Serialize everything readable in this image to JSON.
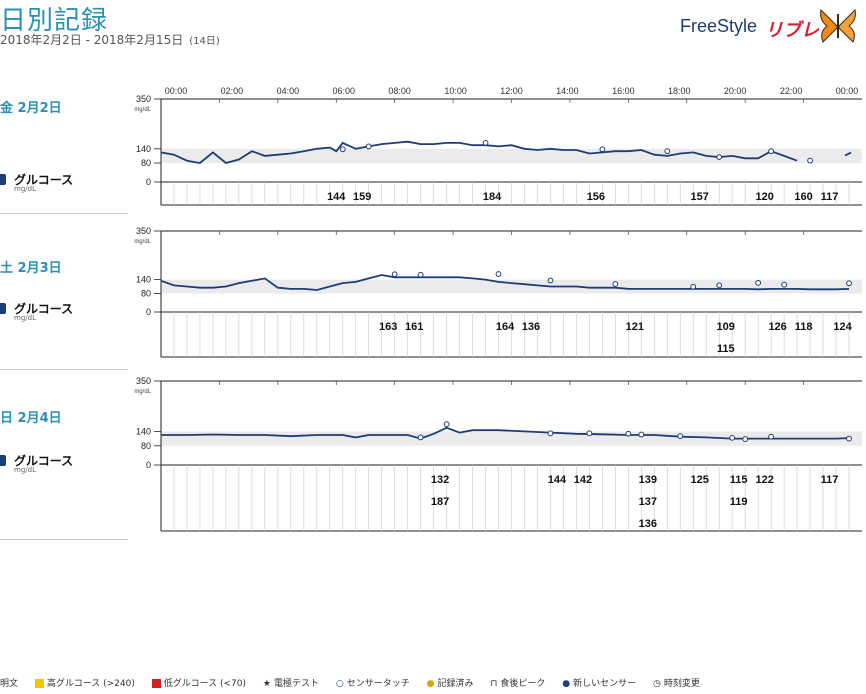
{
  "header": {
    "title": "日別記録",
    "date_range": "2018年2月2日  -  2018年2月15日",
    "days_count": "(14日)",
    "logo_text": "FreeStyle",
    "logo_jp": "リブレ"
  },
  "time_labels": [
    "00:00",
    "02:00",
    "04:00",
    "06:00",
    "08:00",
    "10:00",
    "12:00",
    "14:00",
    "16:00",
    "18:00",
    "20:00",
    "22:00",
    "00:00"
  ],
  "y_ticks": [
    "350",
    "140",
    "80",
    "0"
  ],
  "y_unit": "mg/dL",
  "glucose_label": "グルコース",
  "glucose_unit": "mg/dL",
  "days": [
    {
      "label": "金  2月2日",
      "trace": [
        [
          0,
          125
        ],
        [
          1,
          115
        ],
        [
          2,
          90
        ],
        [
          3,
          80
        ],
        [
          4,
          125
        ],
        [
          5,
          80
        ],
        [
          6,
          95
        ],
        [
          7,
          130
        ],
        [
          8,
          110
        ],
        [
          9,
          115
        ],
        [
          10,
          120
        ],
        [
          11,
          130
        ],
        [
          12,
          140
        ],
        [
          13,
          145
        ],
        [
          13.5,
          130
        ],
        [
          14,
          165
        ],
        [
          15,
          140
        ],
        [
          16,
          150
        ],
        [
          17,
          160
        ],
        [
          18,
          165
        ],
        [
          19,
          170
        ],
        [
          20,
          160
        ],
        [
          21,
          160
        ],
        [
          22,
          165
        ],
        [
          23,
          165
        ],
        [
          24,
          155
        ],
        [
          25,
          155
        ],
        [
          26,
          150
        ],
        [
          27,
          155
        ],
        [
          28,
          140
        ],
        [
          29,
          135
        ],
        [
          30,
          140
        ],
        [
          31,
          135
        ],
        [
          32,
          135
        ],
        [
          33,
          120
        ],
        [
          34,
          125
        ],
        [
          35,
          130
        ],
        [
          36,
          130
        ],
        [
          37,
          135
        ],
        [
          38,
          115
        ],
        [
          39,
          110
        ],
        [
          40,
          120
        ],
        [
          41,
          125
        ],
        [
          42,
          110
        ],
        [
          43,
          105
        ],
        [
          44,
          110
        ],
        [
          45,
          100
        ],
        [
          46,
          100
        ],
        [
          47,
          130
        ],
        [
          48,
          110
        ],
        [
          49,
          90
        ]
      ],
      "trace_end": [
        [
          53,
          120
        ]
      ],
      "touches": [
        [
          14,
          138
        ],
        [
          16,
          150
        ],
        [
          25,
          165
        ],
        [
          34,
          138
        ],
        [
          39,
          130
        ],
        [
          43,
          105
        ],
        [
          47,
          130
        ],
        [
          50,
          90
        ]
      ],
      "readings": [
        {
          "col": 13,
          "row": 0,
          "value": "144"
        },
        {
          "col": 15,
          "row": 0,
          "value": "159"
        },
        {
          "col": 25,
          "row": 0,
          "value": "184"
        },
        {
          "col": 33,
          "row": 0,
          "value": "156"
        },
        {
          "col": 41,
          "row": 0,
          "value": "157"
        },
        {
          "col": 46,
          "row": 0,
          "value": "120"
        },
        {
          "col": 49,
          "row": 0,
          "value": "160"
        },
        {
          "col": 51,
          "row": 0,
          "value": "117"
        }
      ]
    },
    {
      "label": "土  2月3日",
      "trace": [
        [
          0,
          135
        ],
        [
          1,
          115
        ],
        [
          2,
          110
        ],
        [
          3,
          105
        ],
        [
          4,
          105
        ],
        [
          5,
          110
        ],
        [
          6,
          125
        ],
        [
          7,
          135
        ],
        [
          8,
          145
        ],
        [
          9,
          105
        ],
        [
          10,
          100
        ],
        [
          11,
          100
        ],
        [
          12,
          95
        ],
        [
          13,
          110
        ],
        [
          14,
          125
        ],
        [
          15,
          130
        ],
        [
          16,
          145
        ],
        [
          17,
          160
        ],
        [
          18,
          150
        ],
        [
          19,
          150
        ],
        [
          20,
          150
        ],
        [
          21,
          150
        ],
        [
          22,
          150
        ],
        [
          23,
          150
        ],
        [
          24,
          145
        ],
        [
          25,
          140
        ],
        [
          26,
          130
        ],
        [
          27,
          125
        ],
        [
          28,
          120
        ],
        [
          29,
          115
        ],
        [
          30,
          110
        ],
        [
          31,
          110
        ],
        [
          32,
          110
        ],
        [
          33,
          105
        ],
        [
          34,
          105
        ],
        [
          35,
          105
        ],
        [
          36,
          100
        ],
        [
          37,
          100
        ],
        [
          38,
          100
        ],
        [
          39,
          100
        ],
        [
          40,
          100
        ],
        [
          41,
          100
        ],
        [
          42,
          100
        ],
        [
          43,
          100
        ],
        [
          44,
          100
        ],
        [
          45,
          100
        ],
        [
          46,
          98
        ],
        [
          47,
          100
        ],
        [
          48,
          100
        ],
        [
          49,
          100
        ],
        [
          50,
          98
        ],
        [
          51,
          98
        ],
        [
          52,
          98
        ],
        [
          53,
          100
        ]
      ],
      "trace_end": [],
      "touches": [
        [
          18,
          163
        ],
        [
          20,
          161
        ],
        [
          26,
          164
        ],
        [
          30,
          136
        ],
        [
          35,
          121
        ],
        [
          41,
          109
        ],
        [
          43,
          115
        ],
        [
          46,
          126
        ],
        [
          48,
          118
        ],
        [
          53,
          124
        ]
      ],
      "readings": [
        {
          "col": 17,
          "row": 0,
          "value": "163"
        },
        {
          "col": 19,
          "row": 0,
          "value": "161"
        },
        {
          "col": 26,
          "row": 0,
          "value": "164"
        },
        {
          "col": 28,
          "row": 0,
          "value": "136"
        },
        {
          "col": 36,
          "row": 0,
          "value": "121"
        },
        {
          "col": 43,
          "row": 0,
          "value": "109"
        },
        {
          "col": 43,
          "row": 1,
          "value": "115"
        },
        {
          "col": 47,
          "row": 0,
          "value": "126"
        },
        {
          "col": 49,
          "row": 0,
          "value": "118"
        },
        {
          "col": 52,
          "row": 0,
          "value": "124"
        }
      ]
    },
    {
      "label": "日  2月4日",
      "trace": [
        [
          0,
          125
        ],
        [
          2,
          125
        ],
        [
          4,
          127
        ],
        [
          6,
          125
        ],
        [
          8,
          125
        ],
        [
          10,
          120
        ],
        [
          12,
          125
        ],
        [
          14,
          125
        ],
        [
          15,
          115
        ],
        [
          16,
          125
        ],
        [
          18,
          125
        ],
        [
          19,
          125
        ],
        [
          20,
          110
        ],
        [
          21,
          130
        ],
        [
          22,
          155
        ],
        [
          23,
          135
        ],
        [
          24,
          145
        ],
        [
          26,
          145
        ],
        [
          28,
          140
        ],
        [
          30,
          135
        ],
        [
          32,
          130
        ],
        [
          34,
          128
        ],
        [
          36,
          125
        ],
        [
          38,
          125
        ],
        [
          40,
          118
        ],
        [
          42,
          115
        ],
        [
          44,
          110
        ],
        [
          46,
          110
        ],
        [
          48,
          110
        ],
        [
          50,
          110
        ],
        [
          52,
          110
        ],
        [
          53,
          112
        ]
      ],
      "trace_end": [],
      "touches": [
        [
          20,
          115
        ],
        [
          22,
          170
        ],
        [
          30,
          132
        ],
        [
          33,
          132
        ],
        [
          36,
          130
        ],
        [
          37,
          127
        ],
        [
          40,
          120
        ],
        [
          44,
          113
        ],
        [
          45,
          108
        ],
        [
          47,
          118
        ],
        [
          53,
          110
        ]
      ],
      "readings": [
        {
          "col": 21,
          "row": 0,
          "value": "132"
        },
        {
          "col": 21,
          "row": 1,
          "value": "187"
        },
        {
          "col": 30,
          "row": 0,
          "value": "144"
        },
        {
          "col": 32,
          "row": 0,
          "value": "142"
        },
        {
          "col": 37,
          "row": 0,
          "value": "139"
        },
        {
          "col": 37,
          "row": 1,
          "value": "137"
        },
        {
          "col": 37,
          "row": 2,
          "value": "136"
        },
        {
          "col": 41,
          "row": 0,
          "value": "125"
        },
        {
          "col": 44,
          "row": 0,
          "value": "115"
        },
        {
          "col": 44,
          "row": 1,
          "value": "119"
        },
        {
          "col": 46,
          "row": 0,
          "value": "122"
        },
        {
          "col": 51,
          "row": 0,
          "value": "117"
        }
      ]
    }
  ],
  "legend": {
    "prefix": "明文",
    "high": "高グルコース (>240)",
    "low": "低グルコース (<70)",
    "bg_test": "電極テスト",
    "sensor_touch": "センサータッチ",
    "recorded": "記録済み",
    "meal_peak": "食後ピーク",
    "new_sensor": "新しいセンサー",
    "time_change": "時刻変更",
    "high_color": "#f5c400",
    "low_color": "#d42020",
    "trace_color": "#1d3c78",
    "accent_color": "#2a90b5"
  }
}
